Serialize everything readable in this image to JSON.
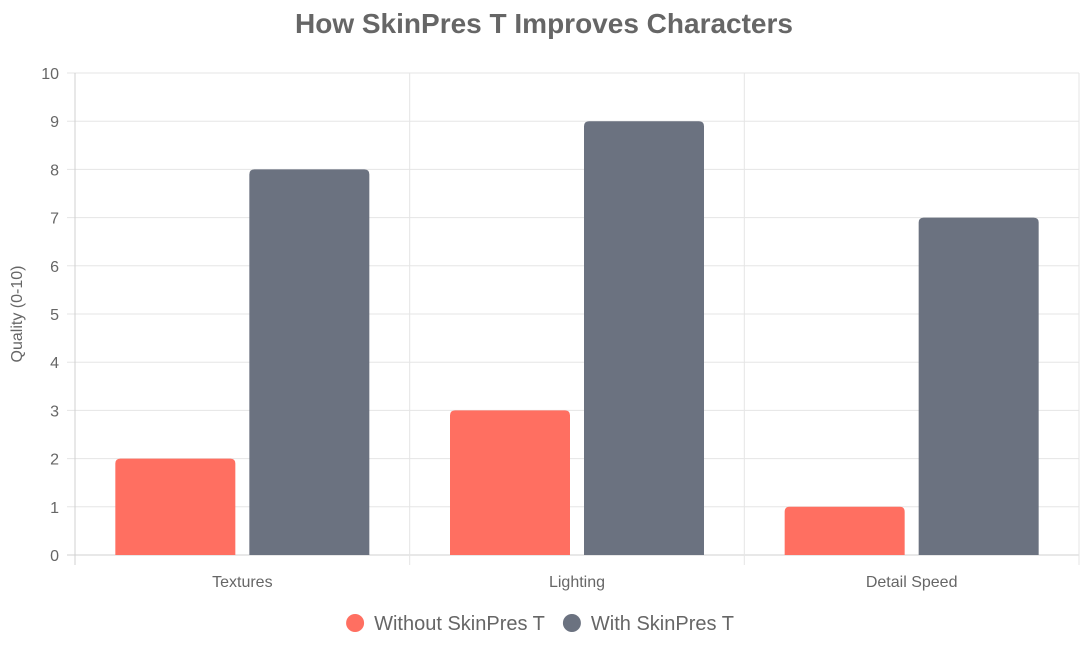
{
  "chart_data": {
    "type": "bar",
    "title": "How SkinPres T Improves Characters",
    "xlabel": "",
    "ylabel": "Quality (0-10)",
    "categories": [
      "Textures",
      "Lighting",
      "Detail Speed"
    ],
    "series": [
      {
        "name": "Without SkinPres T",
        "values": [
          2,
          3,
          1
        ],
        "color": "#ff6f61"
      },
      {
        "name": "With SkinPres T",
        "values": [
          8,
          9,
          7
        ],
        "color": "#6b7280"
      }
    ],
    "ylim": [
      0,
      10
    ],
    "yticks": [
      "0",
      "1",
      "2",
      "3",
      "4",
      "5",
      "6",
      "7",
      "8",
      "9",
      "10"
    ],
    "grid": true,
    "legend_position": "bottom"
  }
}
